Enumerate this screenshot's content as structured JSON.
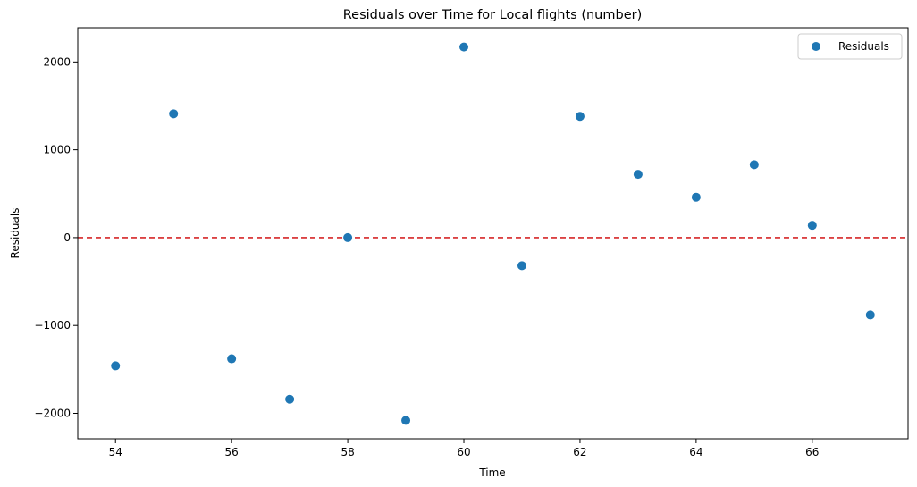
{
  "chart_data": {
    "type": "scatter",
    "title": "Residuals over Time for Local flights (number)",
    "xlabel": "Time",
    "ylabel": "Residuals",
    "xlim": [
      53.35,
      67.65
    ],
    "ylim": [
      -2290,
      2390
    ],
    "xticks": [
      54,
      56,
      58,
      60,
      62,
      64,
      66
    ],
    "yticks": [
      -2000,
      -1000,
      0,
      1000,
      2000
    ],
    "xtick_labels": [
      "54",
      "56",
      "58",
      "60",
      "62",
      "64",
      "66"
    ],
    "ytick_labels": [
      "−2000",
      "−1000",
      "0",
      "1000",
      "2000"
    ],
    "grid": false,
    "legend_position": "top-right",
    "series": [
      {
        "name": "Residuals",
        "color": "#1f77b4",
        "marker": "circle",
        "x": [
          54,
          55,
          56,
          57,
          58,
          59,
          60,
          61,
          62,
          63,
          64,
          65,
          66,
          67
        ],
        "y": [
          -1460,
          1410,
          -1380,
          -1840,
          0,
          -2080,
          2170,
          -320,
          1380,
          720,
          460,
          830,
          140,
          -880
        ]
      }
    ],
    "reference_line": {
      "y": 0,
      "color": "#d62728",
      "style": "dashed"
    }
  }
}
